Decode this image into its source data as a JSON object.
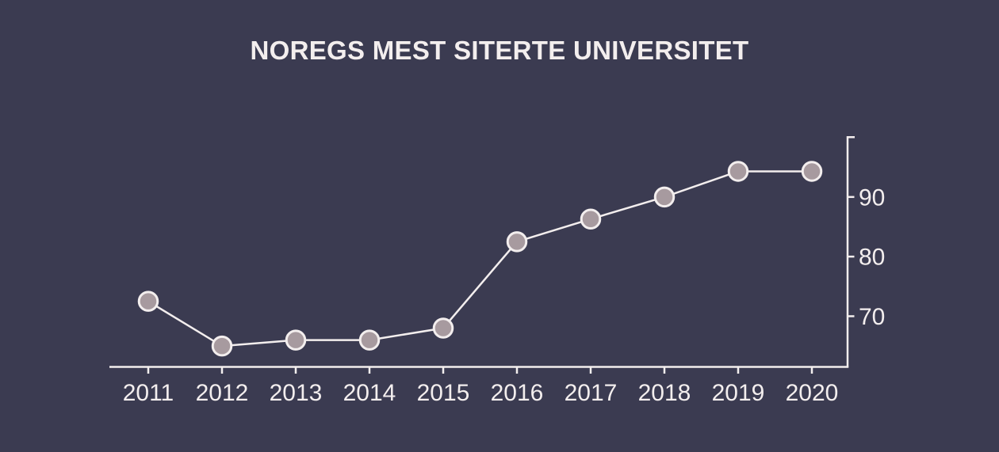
{
  "page": {
    "background_color": "#3b3b51",
    "text_color": "#f3eeee"
  },
  "chart_data": {
    "type": "line",
    "title": "NOREGS MEST SITERTE UNIVERSITET",
    "categories": [
      "2011",
      "2012",
      "2013",
      "2014",
      "2015",
      "2016",
      "2017",
      "2018",
      "2019",
      "2020"
    ],
    "values": [
      72.5,
      65,
      66,
      66,
      68,
      82.5,
      86.3,
      90,
      94.3,
      94.3
    ],
    "xlabel": "",
    "ylabel": "",
    "yticks": [
      70,
      80,
      90
    ],
    "ylim": [
      61.5,
      100.2
    ],
    "grid": false,
    "legend_position": "none",
    "y_axis_side": "right",
    "line_color": "#f3eeee",
    "axis_color": "#f3eeee",
    "marker_fill": "#a79a9f",
    "marker_stroke": "#f3eeee"
  }
}
